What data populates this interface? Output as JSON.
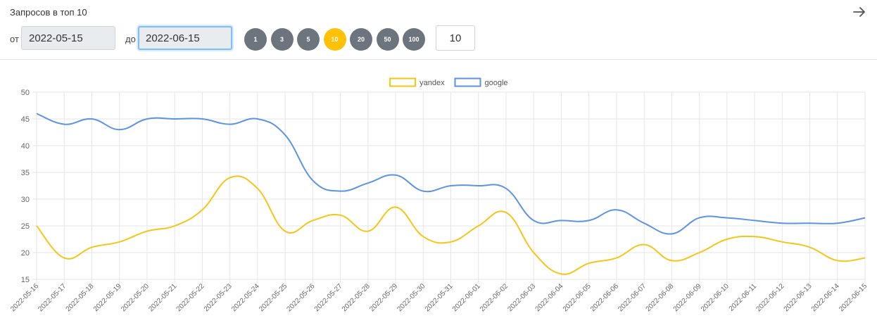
{
  "header": {
    "title": "Запросов в топ 10"
  },
  "filters": {
    "from_label": "от",
    "from_value": "2022-05-15",
    "to_label": "до",
    "to_value": "2022-06-15",
    "top_buttons": [
      "1",
      "3",
      "5",
      "10",
      "20",
      "50",
      "100"
    ],
    "active_top": "10",
    "custom_top_value": "10"
  },
  "icons": {
    "submit": "arrow-right-icon"
  },
  "colors": {
    "yandex": "#f5c518",
    "google": "#5b93e6",
    "active_button": "#ffc107",
    "button": "#6c757d"
  },
  "chart_data": {
    "type": "line",
    "x": [
      "2022-05-16",
      "2022-05-17",
      "2022-05-18",
      "2022-05-19",
      "2022-05-20",
      "2022-05-21",
      "2022-05-22",
      "2022-05-23",
      "2022-05-24",
      "2022-05-25",
      "2022-05-26",
      "2022-05-27",
      "2022-05-28",
      "2022-05-29",
      "2022-05-30",
      "2022-05-31",
      "2022-06-01",
      "2022-06-02",
      "2022-06-03",
      "2022-06-04",
      "2022-06-05",
      "2022-06-06",
      "2022-06-07",
      "2022-06-08",
      "2022-06-09",
      "2022-06-10",
      "2022-06-11",
      "2022-06-12",
      "2022-06-13",
      "2022-06-14",
      "2022-06-15"
    ],
    "series": [
      {
        "name": "yandex",
        "color": "#f5c518",
        "values": [
          25,
          19,
          21,
          22,
          24,
          25,
          28,
          34,
          32,
          24,
          26,
          27,
          24,
          28.5,
          23,
          22,
          25,
          27.5,
          20,
          16,
          18,
          19,
          21.5,
          18.5,
          20,
          22.5,
          23,
          22,
          21,
          18.5,
          19
        ]
      },
      {
        "name": "google",
        "color": "#5b93e6",
        "values": [
          46,
          44,
          45,
          43,
          45,
          45,
          45,
          44,
          45,
          42,
          33.5,
          31.5,
          33,
          34.5,
          31.5,
          32.5,
          32.5,
          32,
          26,
          26,
          26,
          28,
          25.5,
          23.5,
          26.5,
          26.5,
          26,
          25.5,
          25.5,
          25.5,
          26.5
        ]
      }
    ],
    "ylim": [
      15,
      50
    ],
    "yticks": [
      15,
      20,
      25,
      30,
      35,
      40,
      45,
      50
    ],
    "grid": true,
    "legend": "top-center"
  }
}
